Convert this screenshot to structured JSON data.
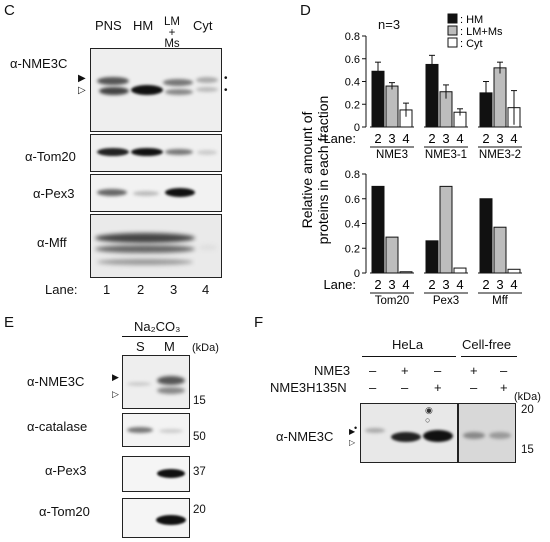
{
  "panelC": {
    "letter": "C",
    "columns": [
      "PNS",
      "HM",
      "LM\n+\nMs",
      "Cyt"
    ],
    "blots": [
      "α-NME3C",
      "α-Tom20",
      "α-Pex3",
      "α-Mff"
    ],
    "lane_label": "Lane:",
    "lanes": [
      "1",
      "2",
      "3",
      "4"
    ],
    "marker_filled": "▶",
    "marker_open": "▷",
    "dot": "•"
  },
  "panelD": {
    "letter": "D",
    "n_label": "n=3",
    "ylabel_line1": "Relative amount of",
    "ylabel_line2": "proteins in each fraction",
    "lane_label": "Lane:",
    "legend": [
      "HM",
      "LM+Ms",
      "Cyt"
    ],
    "colors": {
      "HM": "#111111",
      "LM+Ms": "#bdbdbd",
      "Cyt": "#ffffff"
    }
  },
  "chart_data": [
    {
      "type": "bar",
      "title": "",
      "ylabel": "Relative amount of proteins in each fraction",
      "ylim": [
        0,
        0.8
      ],
      "yticks": [
        "0",
        "0.2",
        "0.4",
        "0.6",
        "0.8"
      ],
      "groups": [
        "NME3",
        "NME3-1",
        "NME3-2"
      ],
      "lanes": [
        "2",
        "3",
        "4"
      ],
      "series": [
        {
          "name": "HM",
          "values": [
            0.49,
            0.55,
            0.3
          ],
          "errors": [
            0.08,
            0.08,
            0.1
          ]
        },
        {
          "name": "LM+Ms",
          "values": [
            0.36,
            0.31,
            0.52
          ],
          "errors": [
            0.03,
            0.06,
            0.05
          ]
        },
        {
          "name": "Cyt",
          "values": [
            0.15,
            0.13,
            0.17
          ],
          "errors": [
            0.06,
            0.03,
            0.15
          ]
        }
      ]
    },
    {
      "type": "bar",
      "title": "",
      "ylabel": "Relative amount of proteins in each fraction",
      "ylim": [
        0,
        0.8
      ],
      "yticks": [
        "0",
        "0.2",
        "0.4",
        "0.6",
        "0.8"
      ],
      "groups": [
        "Tom20",
        "Pex3",
        "Mff"
      ],
      "lanes": [
        "2",
        "3",
        "4"
      ],
      "series": [
        {
          "name": "HM",
          "values": [
            0.7,
            0.26,
            0.6
          ]
        },
        {
          "name": "LM+Ms",
          "values": [
            0.29,
            0.7,
            0.37
          ]
        },
        {
          "name": "Cyt",
          "values": [
            0.01,
            0.04,
            0.03
          ]
        }
      ]
    }
  ],
  "panelE": {
    "letter": "E",
    "reagent": "Na₂CO₃",
    "columns": [
      "S",
      "M"
    ],
    "kda": "(kDa)",
    "blots": [
      "α-NME3C",
      "α-catalase",
      "α-Pex3",
      "α-Tom20"
    ],
    "markers": [
      "15",
      "50",
      "37",
      "20"
    ]
  },
  "panelF": {
    "letter": "F",
    "group_hela": "HeLa",
    "group_cellfree": "Cell-free",
    "row_labels": [
      "NME3",
      "NME3H135N"
    ],
    "signs_row1": [
      "–",
      "+",
      "–",
      "+",
      "–"
    ],
    "signs_row2": [
      "–",
      "–",
      "+",
      "–",
      "+"
    ],
    "blot_label": "α-NME3C",
    "kda": "(kDa)",
    "markers": [
      "20",
      "15"
    ]
  }
}
